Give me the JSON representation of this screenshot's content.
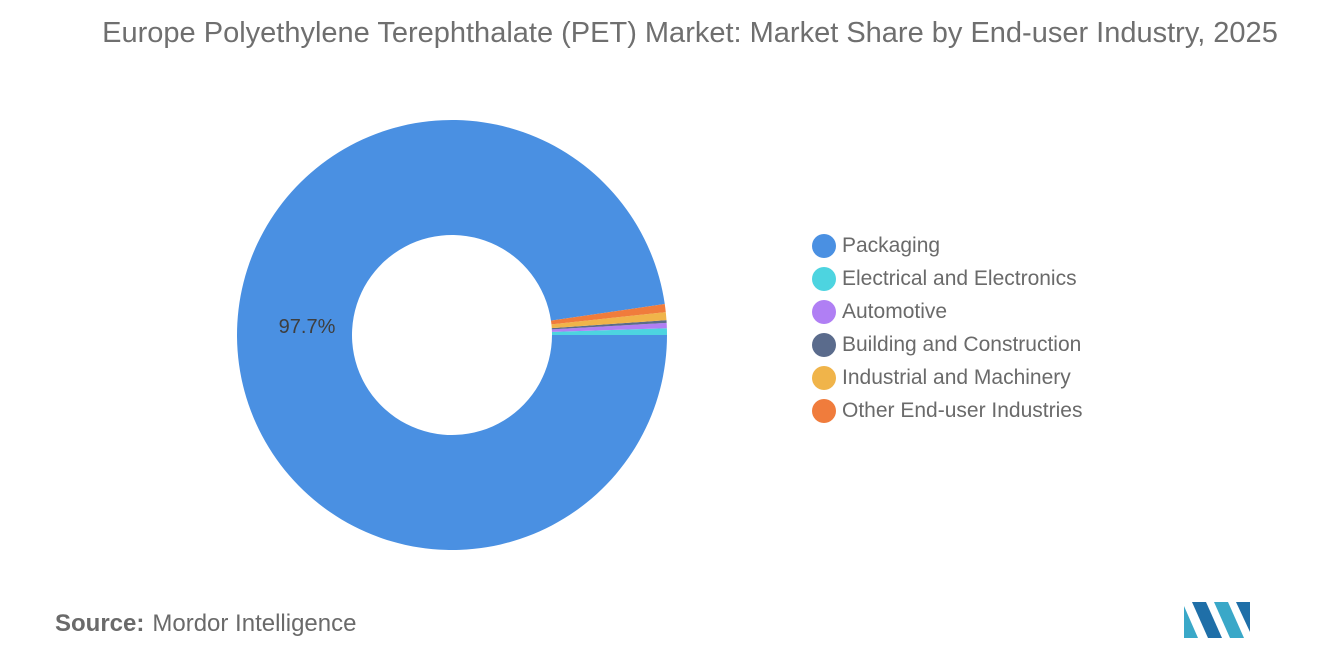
{
  "chart_data": {
    "type": "pie",
    "variant": "donut",
    "title": "Europe Polyethylene Terephthalate (PET) Market: Market Share by End-user Industry, 2025",
    "categories": [
      "Packaging",
      "Electrical and Electronics",
      "Automotive",
      "Building and Construction",
      "Industrial and Machinery",
      "Other End-user Industries"
    ],
    "values": [
      97.7,
      0.5,
      0.4,
      0.2,
      0.6,
      0.6
    ],
    "unit": "%",
    "colors": [
      "#4a90e2",
      "#4dd4e0",
      "#b07ff4",
      "#5a6b8c",
      "#f0b44a",
      "#f07c3c"
    ],
    "data_labels": [
      "97.7%",
      "",
      "",
      "",
      "",
      ""
    ],
    "legend_position": "right"
  },
  "source": {
    "label": "Source:",
    "value": "Mordor Intelligence"
  },
  "logo": {
    "icon": "mordor-intelligence-logo-icon",
    "colors": [
      "#3aa8c8",
      "#1f6fa8"
    ]
  }
}
